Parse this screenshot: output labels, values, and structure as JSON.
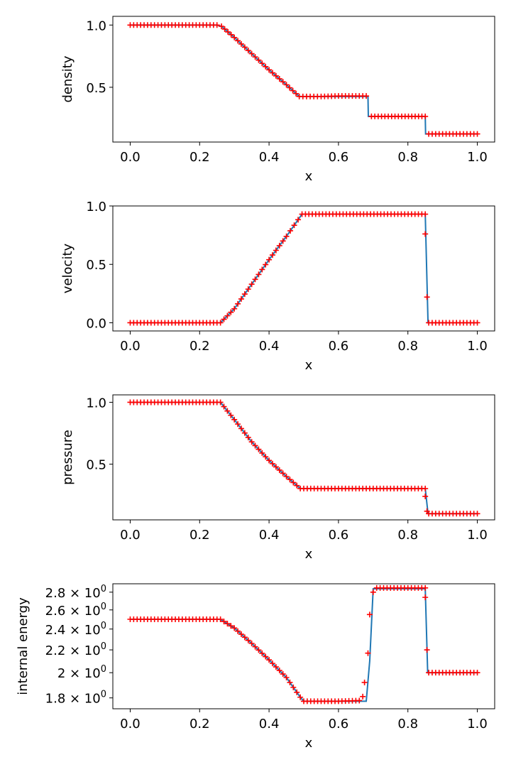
{
  "colors": {
    "exact": "#1f77b4",
    "numeric": "#ff0000"
  },
  "chart_data": [
    {
      "type": "line",
      "ylabel": "density",
      "xlabel": "x",
      "xlim": [
        -0.05,
        1.05
      ],
      "ylim": [
        0.06,
        1.07
      ],
      "xticks": [
        0.0,
        0.2,
        0.4,
        0.6,
        0.8,
        1.0
      ],
      "xtick_labels": [
        "0.0",
        "0.2",
        "0.4",
        "0.6",
        "0.8",
        "1.0"
      ],
      "yticks": [
        0.5,
        1.0
      ],
      "ytick_labels": [
        "0.5",
        "1.0"
      ],
      "series": [
        {
          "style": "line",
          "color": "#1f77b4",
          "x": [
            0.0,
            0.25,
            0.263,
            0.3,
            0.35,
            0.4,
            0.45,
            0.487,
            0.55,
            0.685,
            0.686,
            0.85,
            0.851,
            1.0
          ],
          "y": [
            1.0,
            1.0,
            0.99,
            0.9,
            0.77,
            0.64,
            0.52,
            0.426,
            0.426,
            0.426,
            0.266,
            0.266,
            0.125,
            0.125
          ]
        },
        {
          "style": "markers",
          "marker": "+",
          "color": "#ff0000",
          "x": [
            0.0,
            0.25,
            0.263,
            0.3,
            0.35,
            0.4,
            0.45,
            0.487,
            0.55,
            0.6,
            0.68,
            0.695,
            0.85,
            0.86,
            1.0
          ],
          "y": [
            1.0,
            1.0,
            0.99,
            0.9,
            0.77,
            0.64,
            0.52,
            0.426,
            0.426,
            0.43,
            0.43,
            0.266,
            0.266,
            0.125,
            0.125
          ]
        }
      ]
    },
    {
      "type": "line",
      "ylabel": "velocity",
      "xlabel": "x",
      "xlim": [
        -0.05,
        1.05
      ],
      "ylim": [
        -0.07,
        1.0
      ],
      "xticks": [
        0.0,
        0.2,
        0.4,
        0.6,
        0.8,
        1.0
      ],
      "xtick_labels": [
        "0.0",
        "0.2",
        "0.4",
        "0.6",
        "0.8",
        "1.0"
      ],
      "yticks": [
        0.0,
        0.5,
        1.0
      ],
      "ytick_labels": [
        "0.0",
        "0.5",
        "1.0"
      ],
      "series": [
        {
          "style": "line",
          "color": "#1f77b4",
          "x": [
            0.0,
            0.26,
            0.3,
            0.35,
            0.4,
            0.45,
            0.495,
            0.85,
            0.858,
            1.0
          ],
          "y": [
            0.0,
            0.0,
            0.12,
            0.33,
            0.54,
            0.74,
            0.93,
            0.93,
            0.0,
            0.0
          ]
        },
        {
          "style": "markers",
          "marker": "+",
          "color": "#ff0000",
          "x": [
            0.0,
            0.26,
            0.3,
            0.35,
            0.4,
            0.45,
            0.495,
            0.85,
            0.85,
            0.855,
            0.86,
            1.0
          ],
          "y": [
            0.0,
            0.0,
            0.12,
            0.33,
            0.54,
            0.74,
            0.93,
            0.93,
            0.76,
            0.22,
            0.0,
            0.0
          ]
        }
      ]
    },
    {
      "type": "line",
      "ylabel": "pressure",
      "xlabel": "x",
      "xlim": [
        -0.05,
        1.05
      ],
      "ylim": [
        0.05,
        1.06
      ],
      "xticks": [
        0.0,
        0.2,
        0.4,
        0.6,
        0.8,
        1.0
      ],
      "xtick_labels": [
        "0.0",
        "0.2",
        "0.4",
        "0.6",
        "0.8",
        "1.0"
      ],
      "yticks": [
        0.5,
        1.0
      ],
      "ytick_labels": [
        "0.5",
        "1.0"
      ],
      "series": [
        {
          "style": "line",
          "color": "#1f77b4",
          "x": [
            0.0,
            0.26,
            0.3,
            0.35,
            0.4,
            0.45,
            0.49,
            0.85,
            0.858,
            1.0
          ],
          "y": [
            1.0,
            1.0,
            0.86,
            0.68,
            0.53,
            0.4,
            0.303,
            0.303,
            0.1,
            0.1
          ]
        },
        {
          "style": "markers",
          "marker": "+",
          "color": "#ff0000",
          "x": [
            0.0,
            0.26,
            0.3,
            0.35,
            0.4,
            0.45,
            0.49,
            0.85,
            0.85,
            0.855,
            0.86,
            1.0
          ],
          "y": [
            1.0,
            1.0,
            0.86,
            0.68,
            0.53,
            0.4,
            0.303,
            0.303,
            0.24,
            0.12,
            0.1,
            0.1
          ]
        }
      ]
    },
    {
      "type": "line",
      "ylabel": "internal energy",
      "xlabel": "x",
      "yscale": "log",
      "xlim": [
        -0.05,
        1.05
      ],
      "ylim": [
        1.72,
        2.9
      ],
      "xticks": [
        0.0,
        0.2,
        0.4,
        0.6,
        0.8,
        1.0
      ],
      "xtick_labels": [
        "0.0",
        "0.2",
        "0.4",
        "0.6",
        "0.8",
        "1.0"
      ],
      "yticks": [
        1.8,
        2.0,
        2.2,
        2.4,
        2.6,
        2.8
      ],
      "ytick_mantissas": [
        "1.8",
        "2",
        "2.2",
        "2.4",
        "2.6",
        "2.8"
      ],
      "ytick_times": "×",
      "ytick_base": "10",
      "ytick_exponent": "0",
      "series": [
        {
          "style": "line",
          "color": "#1f77b4",
          "x": [
            0.0,
            0.26,
            0.3,
            0.35,
            0.4,
            0.45,
            0.49,
            0.5,
            0.6,
            0.68,
            0.69,
            0.7,
            0.85,
            0.857,
            1.0
          ],
          "y": [
            2.5,
            2.5,
            2.41,
            2.26,
            2.11,
            1.96,
            1.805,
            1.775,
            1.775,
            1.775,
            2.1,
            2.84,
            2.84,
            2.0,
            2.0
          ]
        },
        {
          "style": "markers",
          "marker": "+",
          "color": "#ff0000",
          "x": [
            0.0,
            0.26,
            0.3,
            0.35,
            0.4,
            0.45,
            0.49,
            0.5,
            0.6,
            0.66,
            0.67,
            0.675,
            0.685,
            0.69,
            0.7,
            0.71,
            0.85,
            0.85,
            0.855,
            0.86,
            1.0
          ],
          "y": [
            2.5,
            2.5,
            2.41,
            2.26,
            2.11,
            1.96,
            1.805,
            1.775,
            1.775,
            1.78,
            1.81,
            1.92,
            2.17,
            2.55,
            2.8,
            2.85,
            2.85,
            2.74,
            2.2,
            2.0,
            2.0
          ]
        }
      ]
    }
  ]
}
